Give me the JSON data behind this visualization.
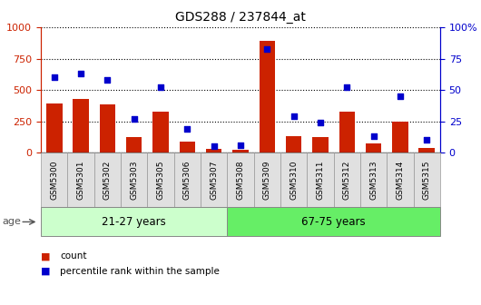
{
  "title": "GDS288 / 237844_at",
  "samples": [
    "GSM5300",
    "GSM5301",
    "GSM5302",
    "GSM5303",
    "GSM5305",
    "GSM5306",
    "GSM5307",
    "GSM5308",
    "GSM5309",
    "GSM5310",
    "GSM5311",
    "GSM5312",
    "GSM5313",
    "GSM5314",
    "GSM5315"
  ],
  "counts": [
    390,
    430,
    385,
    120,
    325,
    90,
    30,
    25,
    890,
    130,
    120,
    325,
    75,
    245,
    35
  ],
  "percentiles": [
    60,
    63,
    58,
    27,
    52,
    19,
    5,
    6,
    83,
    29,
    24,
    52,
    13,
    45,
    10
  ],
  "group1_label": "21-27 years",
  "group2_label": "67-75 years",
  "n_group1": 7,
  "n_group2": 8,
  "group1_color": "#ccffcc",
  "group2_color": "#66ee66",
  "label_bg_color": "#e0e0e0",
  "bar_color": "#cc2200",
  "dot_color": "#0000cc",
  "ylim_left": [
    0,
    1000
  ],
  "ylim_right": [
    0,
    100
  ],
  "yticks_left": [
    0,
    250,
    500,
    750,
    1000
  ],
  "yticks_right": [
    0,
    25,
    50,
    75,
    100
  ],
  "ylabel_left_color": "#cc2200",
  "ylabel_right_color": "#0000cc",
  "plot_bg_color": "#ffffff",
  "legend_count": "count",
  "legend_pct": "percentile rank within the sample",
  "age_label": "age"
}
